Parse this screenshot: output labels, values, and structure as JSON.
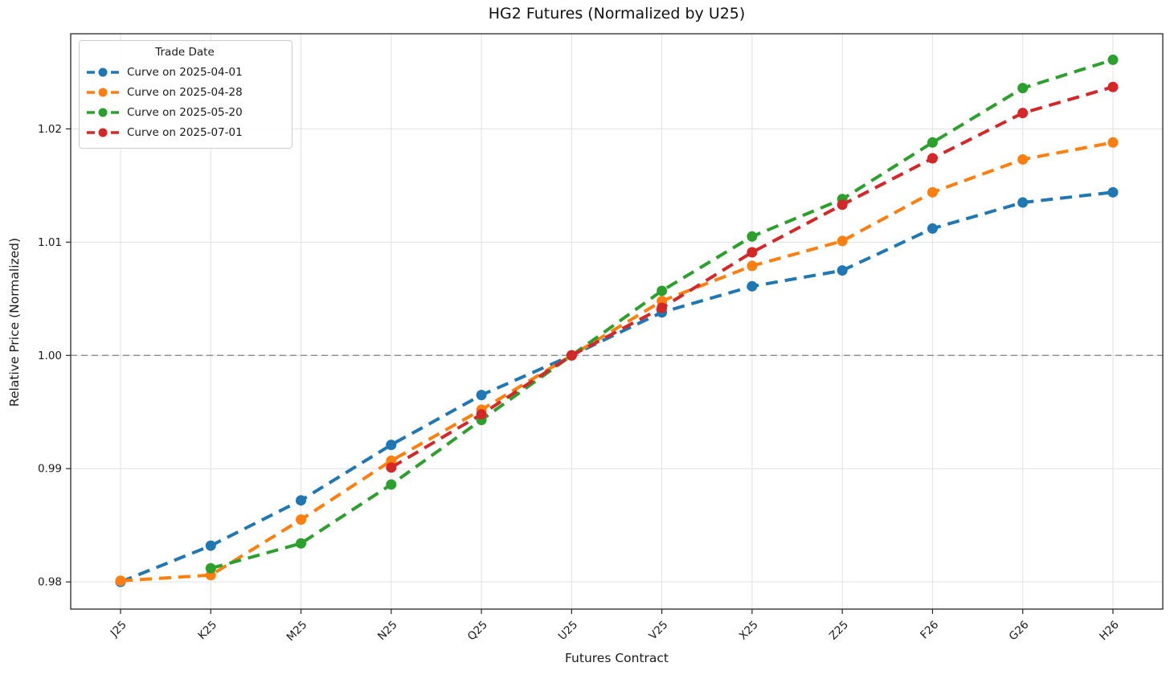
{
  "chart_data": {
    "type": "line",
    "title": "HG2 Futures (Normalized by U25)",
    "xlabel": "Futures Contract",
    "ylabel": "Relative Price (Normalized)",
    "categories": [
      "J25",
      "K25",
      "M25",
      "N25",
      "Q25",
      "U25",
      "V25",
      "X25",
      "Z25",
      "F26",
      "G26",
      "H26"
    ],
    "series": [
      {
        "name": "Curve on 2025-04-01",
        "color": "#1f77b4",
        "values": [
          0.98,
          0.9832,
          0.9872,
          0.9921,
          0.9965,
          1.0,
          1.0038,
          1.0061,
          1.0075,
          1.0112,
          1.0135,
          1.0144
        ]
      },
      {
        "name": "Curve on 2025-04-28",
        "color": "#ff7f0e",
        "values": [
          0.9801,
          0.9806,
          0.9855,
          0.9907,
          0.9952,
          1.0,
          1.0048,
          1.0079,
          1.0101,
          1.0144,
          1.0173,
          1.0188
        ]
      },
      {
        "name": "Curve on 2025-05-20",
        "color": "#2ca02c",
        "values": [
          null,
          0.9812,
          0.9834,
          0.9886,
          0.9943,
          1.0,
          1.0057,
          1.0105,
          1.0138,
          1.0188,
          1.0236,
          1.0261
        ]
      },
      {
        "name": "Curve on 2025-07-01",
        "color": "#d62728",
        "values": [
          null,
          null,
          null,
          0.9901,
          0.9948,
          1.0,
          1.0042,
          1.0091,
          1.0133,
          1.0174,
          1.0214,
          1.0237
        ]
      }
    ],
    "legend": {
      "title": "Trade Date",
      "position": "upper left"
    },
    "y_ticks": [
      "0.98",
      "0.99",
      "1.00",
      "1.01",
      "1.02"
    ],
    "ylim": [
      0.9776,
      1.0284
    ],
    "reference_line": {
      "y": 1.0,
      "style": "dashed",
      "color": "#8c8c8c"
    },
    "grid": true,
    "line_style": "dashed",
    "marker": "circle",
    "colors": {
      "grid": "#e0e0e0",
      "spine": "#262626",
      "background": "#ffffff"
    }
  }
}
